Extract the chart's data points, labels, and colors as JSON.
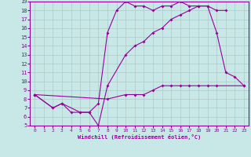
{
  "xlabel": "Windchill (Refroidissement éolien,°C)",
  "xlim": [
    -0.5,
    23.5
  ],
  "ylim": [
    5,
    19
  ],
  "xticks": [
    0,
    1,
    2,
    3,
    4,
    5,
    6,
    7,
    8,
    9,
    10,
    11,
    12,
    13,
    14,
    15,
    16,
    17,
    18,
    19,
    20,
    21,
    22,
    23
  ],
  "yticks": [
    5,
    6,
    7,
    8,
    9,
    10,
    11,
    12,
    13,
    14,
    15,
    16,
    17,
    18,
    19
  ],
  "background_color": "#c8e8e8",
  "grid_color": "#b0c8c8",
  "line_color": "#990099",
  "lines": [
    {
      "x": [
        0,
        2,
        3,
        4,
        5,
        6,
        7,
        8,
        9,
        10,
        11,
        12,
        13,
        14,
        15,
        16,
        17,
        18,
        19,
        20,
        21
      ],
      "y": [
        8.5,
        7.0,
        7.5,
        6.5,
        6.5,
        6.5,
        7.5,
        15.5,
        18.0,
        19.0,
        18.5,
        18.5,
        18.0,
        18.5,
        18.5,
        19.0,
        18.5,
        18.5,
        18.5,
        18.0,
        18.0
      ]
    },
    {
      "x": [
        0,
        2,
        3,
        5,
        6,
        7,
        8,
        10,
        11,
        12,
        13,
        14,
        15,
        16,
        17,
        18,
        19,
        20,
        21,
        22,
        23
      ],
      "y": [
        8.5,
        7.0,
        7.5,
        6.5,
        6.5,
        5.0,
        9.5,
        13.0,
        14.0,
        14.5,
        15.5,
        16.0,
        17.0,
        17.5,
        18.0,
        18.5,
        18.5,
        15.5,
        11.0,
        10.5,
        9.5
      ]
    },
    {
      "x": [
        0,
        8,
        10,
        11,
        12,
        13,
        14,
        15,
        16,
        17,
        18,
        19,
        20,
        23
      ],
      "y": [
        8.5,
        8.0,
        8.5,
        8.5,
        8.5,
        9.0,
        9.5,
        9.5,
        9.5,
        9.5,
        9.5,
        9.5,
        9.5,
        9.5
      ]
    }
  ]
}
